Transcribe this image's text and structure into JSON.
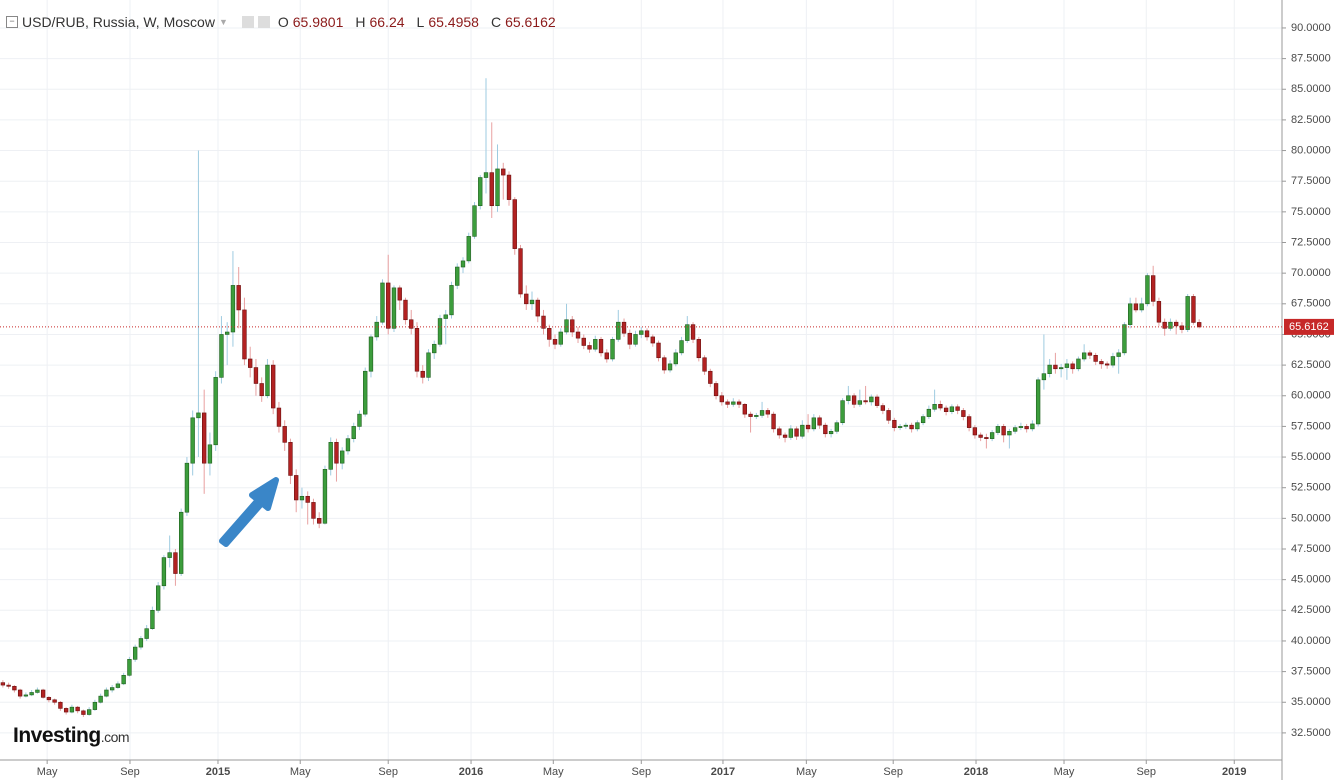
{
  "chart_data": {
    "type": "candlestick",
    "title": "USD/RUB, Russia, W, Moscow",
    "ohlc_labels": [
      "O",
      "H",
      "L",
      "C"
    ],
    "watermark": [
      "Investing",
      ".com"
    ],
    "up_color": "#3c9d3c",
    "down_color": "#b22222",
    "up_wick_color": "#9ecbe0",
    "down_wick_color": "#e8a0a0",
    "price_line_color": "#c62828",
    "grid": true,
    "ylim": [
      30.29,
      92.28
    ],
    "yticks": [
      {
        "value": 32.5,
        "label": "32.5000"
      },
      {
        "value": 35,
        "label": "35.0000"
      },
      {
        "value": 37.5,
        "label": "37.5000"
      },
      {
        "value": 40,
        "label": "40.0000"
      },
      {
        "value": 42.5,
        "label": "42.5000"
      },
      {
        "value": 45,
        "label": "45.0000"
      },
      {
        "value": 47.5,
        "label": "47.5000"
      },
      {
        "value": 50,
        "label": "50.0000"
      },
      {
        "value": 52.5,
        "label": "52.5000"
      },
      {
        "value": 55,
        "label": "55.0000"
      },
      {
        "value": 57.5,
        "label": "57.5000"
      },
      {
        "value": 60,
        "label": "60.0000"
      },
      {
        "value": 62.5,
        "label": "62.5000"
      },
      {
        "value": 65,
        "label": "65.0000"
      },
      {
        "value": 67.5,
        "label": "67.5000"
      },
      {
        "value": 70,
        "label": "70.0000"
      },
      {
        "value": 72.5,
        "label": "72.5000"
      },
      {
        "value": 75,
        "label": "75.0000"
      },
      {
        "value": 77.5,
        "label": "77.5000"
      },
      {
        "value": 80,
        "label": "80.0000"
      },
      {
        "value": 82.5,
        "label": "82.5000"
      },
      {
        "value": 85,
        "label": "85.0000"
      },
      {
        "value": 87.5,
        "label": "87.5000"
      },
      {
        "value": 90,
        "label": "90.0000"
      }
    ],
    "xlim": [
      -0.5,
      222.4
    ],
    "xticks": [
      {
        "value": 7.7,
        "label": "May"
      },
      {
        "value": 22.1,
        "label": "Sep"
      },
      {
        "value": 37.4,
        "label": "2015"
      },
      {
        "value": 51.7,
        "label": "May"
      },
      {
        "value": 67.0,
        "label": "Sep"
      },
      {
        "value": 81.4,
        "label": "2016"
      },
      {
        "value": 95.7,
        "label": "May"
      },
      {
        "value": 111.0,
        "label": "Sep"
      },
      {
        "value": 125.2,
        "label": "2017"
      },
      {
        "value": 139.7,
        "label": "May"
      },
      {
        "value": 154.8,
        "label": "Sep"
      },
      {
        "value": 169.2,
        "label": "2018"
      },
      {
        "value": 184.5,
        "label": "May"
      },
      {
        "value": 198.8,
        "label": "Sep"
      },
      {
        "value": 214.1,
        "label": "2019"
      }
    ],
    "candles": [
      [
        36.6,
        36.8,
        36.2,
        36.4
      ],
      [
        36.4,
        36.6,
        36.1,
        36.3
      ],
      [
        36.3,
        36.4,
        35.8,
        36.0
      ],
      [
        36.0,
        36.1,
        35.3,
        35.5
      ],
      [
        35.5,
        35.8,
        35.4,
        35.6
      ],
      [
        35.6,
        36.0,
        35.5,
        35.8
      ],
      [
        35.8,
        36.2,
        35.7,
        36.0
      ],
      [
        36.0,
        36.1,
        35.3,
        35.4
      ],
      [
        35.4,
        35.5,
        35.0,
        35.2
      ],
      [
        35.2,
        35.3,
        34.8,
        35.0
      ],
      [
        35.0,
        35.1,
        34.3,
        34.5
      ],
      [
        34.5,
        34.6,
        34.0,
        34.2
      ],
      [
        34.2,
        34.8,
        34.1,
        34.6
      ],
      [
        34.6,
        34.7,
        34.1,
        34.3
      ],
      [
        34.3,
        34.4,
        33.8,
        34.0
      ],
      [
        34.0,
        34.6,
        33.9,
        34.4
      ],
      [
        34.4,
        35.2,
        34.3,
        35.0
      ],
      [
        35.0,
        35.7,
        34.9,
        35.5
      ],
      [
        35.5,
        36.2,
        35.4,
        36.0
      ],
      [
        36.0,
        36.4,
        35.8,
        36.2
      ],
      [
        36.2,
        36.7,
        36.1,
        36.5
      ],
      [
        36.5,
        37.4,
        36.4,
        37.2
      ],
      [
        37.2,
        38.7,
        37.1,
        38.5
      ],
      [
        38.5,
        39.7,
        38.3,
        39.5
      ],
      [
        39.5,
        40.4,
        39.3,
        40.2
      ],
      [
        40.2,
        41.3,
        40.0,
        41.0
      ],
      [
        41.0,
        42.8,
        40.9,
        42.5
      ],
      [
        42.5,
        44.8,
        42.3,
        44.5
      ],
      [
        44.5,
        47.0,
        44.2,
        46.8
      ],
      [
        46.8,
        48.6,
        46.0,
        47.2
      ],
      [
        47.2,
        47.5,
        44.5,
        45.5
      ],
      [
        45.5,
        50.8,
        45.3,
        50.5
      ],
      [
        50.5,
        55.0,
        50.2,
        54.5
      ],
      [
        54.5,
        58.8,
        53.5,
        58.2
      ],
      [
        58.2,
        80.0,
        55.0,
        58.6
      ],
      [
        58.6,
        60.5,
        52.0,
        54.5
      ],
      [
        54.5,
        57.0,
        53.5,
        56.0
      ],
      [
        56.0,
        62.0,
        55.5,
        61.5
      ],
      [
        61.5,
        66.5,
        61.0,
        65.0
      ],
      [
        65.0,
        66.0,
        62.5,
        65.2
      ],
      [
        65.2,
        71.8,
        64.0,
        69.0
      ],
      [
        69.0,
        70.5,
        65.5,
        67.0
      ],
      [
        67.0,
        68.0,
        62.5,
        63.0
      ],
      [
        63.0,
        64.0,
        61.5,
        62.3
      ],
      [
        62.3,
        63.0,
        60.0,
        61.0
      ],
      [
        61.0,
        61.5,
        59.5,
        60.0
      ],
      [
        60.0,
        63.0,
        59.8,
        62.5
      ],
      [
        62.5,
        62.9,
        58.5,
        59.0
      ],
      [
        59.0,
        59.5,
        57.0,
        57.5
      ],
      [
        57.5,
        58.0,
        55.5,
        56.2
      ],
      [
        56.2,
        56.5,
        52.8,
        53.5
      ],
      [
        53.5,
        54.0,
        50.5,
        51.5
      ],
      [
        51.5,
        52.5,
        50.8,
        51.8
      ],
      [
        51.8,
        52.2,
        49.5,
        51.3
      ],
      [
        51.3,
        51.6,
        49.5,
        50.0
      ],
      [
        50.0,
        50.5,
        49.2,
        49.6
      ],
      [
        49.6,
        54.3,
        49.5,
        54.0
      ],
      [
        54.0,
        56.6,
        53.5,
        56.2
      ],
      [
        56.2,
        56.5,
        53.0,
        54.5
      ],
      [
        54.5,
        55.8,
        54.0,
        55.5
      ],
      [
        55.5,
        56.8,
        55.2,
        56.5
      ],
      [
        56.5,
        57.8,
        56.2,
        57.5
      ],
      [
        57.5,
        58.8,
        57.2,
        58.5
      ],
      [
        58.5,
        62.3,
        58.3,
        62.0
      ],
      [
        62.0,
        65.0,
        61.5,
        64.8
      ],
      [
        64.8,
        66.5,
        64.5,
        66.0
      ],
      [
        66.0,
        69.5,
        65.8,
        69.2
      ],
      [
        69.2,
        71.5,
        65.0,
        65.5
      ],
      [
        65.5,
        69.0,
        65.2,
        68.8
      ],
      [
        68.8,
        69.0,
        67.0,
        67.8
      ],
      [
        67.8,
        68.0,
        65.8,
        66.2
      ],
      [
        66.2,
        67.0,
        65.0,
        65.5
      ],
      [
        65.5,
        66.0,
        61.5,
        62.0
      ],
      [
        62.0,
        62.5,
        61.0,
        61.5
      ],
      [
        61.5,
        63.8,
        61.2,
        63.5
      ],
      [
        63.5,
        64.5,
        63.0,
        64.2
      ],
      [
        64.2,
        66.6,
        64.0,
        66.3
      ],
      [
        66.3,
        67.0,
        64.2,
        66.6
      ],
      [
        66.6,
        69.3,
        66.3,
        69.0
      ],
      [
        69.0,
        70.8,
        68.7,
        70.5
      ],
      [
        70.5,
        71.3,
        70.0,
        71.0
      ],
      [
        71.0,
        73.3,
        70.8,
        73.0
      ],
      [
        73.0,
        75.8,
        72.8,
        75.5
      ],
      [
        75.5,
        78.0,
        75.2,
        77.8
      ],
      [
        77.8,
        85.9,
        76.5,
        78.2
      ],
      [
        78.2,
        82.3,
        74.5,
        75.5
      ],
      [
        75.5,
        80.5,
        75.0,
        78.5
      ],
      [
        78.5,
        79.0,
        76.0,
        78.0
      ],
      [
        78.0,
        78.3,
        75.5,
        76.0
      ],
      [
        76.0,
        76.2,
        71.5,
        72.0
      ],
      [
        72.0,
        72.3,
        68.0,
        68.3
      ],
      [
        68.3,
        69.0,
        67.0,
        67.5
      ],
      [
        67.5,
        68.5,
        67.0,
        67.8
      ],
      [
        67.8,
        68.0,
        66.0,
        66.5
      ],
      [
        66.5,
        67.0,
        65.0,
        65.5
      ],
      [
        65.5,
        65.8,
        64.0,
        64.6
      ],
      [
        64.6,
        65.0,
        63.8,
        64.2
      ],
      [
        64.2,
        65.5,
        64.0,
        65.2
      ],
      [
        65.2,
        67.5,
        65.0,
        66.2
      ],
      [
        66.2,
        66.5,
        64.8,
        65.2
      ],
      [
        65.2,
        65.6,
        64.3,
        64.7
      ],
      [
        64.7,
        65.0,
        63.8,
        64.1
      ],
      [
        64.1,
        64.4,
        63.5,
        63.8
      ],
      [
        63.8,
        64.9,
        63.6,
        64.6
      ],
      [
        64.6,
        64.8,
        63.2,
        63.5
      ],
      [
        63.5,
        63.8,
        62.7,
        63.0
      ],
      [
        63.0,
        64.8,
        62.8,
        64.6
      ],
      [
        64.6,
        67.0,
        64.4,
        66.0
      ],
      [
        66.0,
        66.3,
        64.8,
        65.1
      ],
      [
        65.1,
        65.4,
        63.8,
        64.2
      ],
      [
        64.2,
        65.3,
        64.0,
        65.0
      ],
      [
        65.0,
        65.6,
        64.7,
        65.3
      ],
      [
        65.3,
        65.5,
        64.5,
        64.8
      ],
      [
        64.8,
        65.0,
        64.0,
        64.3
      ],
      [
        64.3,
        64.5,
        62.8,
        63.1
      ],
      [
        63.1,
        63.3,
        61.8,
        62.1
      ],
      [
        62.1,
        62.9,
        61.9,
        62.6
      ],
      [
        62.6,
        63.8,
        62.4,
        63.5
      ],
      [
        63.5,
        64.8,
        63.3,
        64.5
      ],
      [
        64.5,
        66.5,
        64.3,
        65.8
      ],
      [
        65.8,
        66.0,
        64.3,
        64.6
      ],
      [
        64.6,
        64.8,
        62.8,
        63.1
      ],
      [
        63.1,
        63.3,
        61.7,
        62.0
      ],
      [
        62.0,
        62.2,
        60.7,
        61.0
      ],
      [
        61.0,
        61.2,
        59.7,
        60.0
      ],
      [
        60.0,
        60.3,
        59.2,
        59.5
      ],
      [
        59.5,
        59.7,
        59.0,
        59.3
      ],
      [
        59.3,
        59.8,
        59.1,
        59.5
      ],
      [
        59.5,
        59.7,
        59.0,
        59.3
      ],
      [
        59.3,
        59.4,
        58.2,
        58.5
      ],
      [
        58.5,
        58.7,
        57.0,
        58.3
      ],
      [
        58.3,
        58.6,
        58.1,
        58.4
      ],
      [
        58.4,
        59.5,
        58.2,
        58.8
      ],
      [
        58.8,
        59.0,
        58.2,
        58.5
      ],
      [
        58.5,
        58.7,
        57.0,
        57.3
      ],
      [
        57.3,
        57.5,
        56.5,
        56.8
      ],
      [
        56.8,
        57.0,
        56.2,
        56.6
      ],
      [
        56.6,
        57.6,
        56.4,
        57.3
      ],
      [
        57.3,
        57.5,
        56.4,
        56.7
      ],
      [
        56.7,
        58.0,
        56.5,
        57.6
      ],
      [
        57.6,
        58.5,
        57.0,
        57.3
      ],
      [
        57.3,
        58.5,
        57.1,
        58.2
      ],
      [
        58.2,
        58.4,
        57.3,
        57.6
      ],
      [
        57.6,
        57.8,
        56.6,
        56.9
      ],
      [
        56.9,
        57.3,
        56.6,
        57.1
      ],
      [
        57.1,
        58.0,
        56.9,
        57.8
      ],
      [
        57.8,
        59.8,
        57.6,
        59.6
      ],
      [
        59.6,
        60.8,
        59.3,
        60.0
      ],
      [
        60.0,
        60.2,
        59.0,
        59.3
      ],
      [
        59.3,
        60.5,
        59.1,
        59.6
      ],
      [
        59.6,
        60.8,
        59.3,
        59.5
      ],
      [
        59.5,
        60.1,
        59.2,
        59.9
      ],
      [
        59.9,
        60.1,
        59.0,
        59.2
      ],
      [
        59.2,
        59.4,
        58.5,
        58.8
      ],
      [
        58.8,
        59.0,
        57.7,
        58.0
      ],
      [
        58.0,
        58.2,
        57.1,
        57.4
      ],
      [
        57.4,
        57.7,
        57.2,
        57.5
      ],
      [
        57.5,
        57.8,
        57.3,
        57.6
      ],
      [
        57.6,
        57.8,
        57.0,
        57.3
      ],
      [
        57.3,
        58.0,
        57.1,
        57.8
      ],
      [
        57.8,
        58.5,
        57.6,
        58.3
      ],
      [
        58.3,
        59.2,
        58.1,
        58.9
      ],
      [
        58.9,
        60.5,
        58.7,
        59.3
      ],
      [
        59.3,
        59.6,
        58.8,
        59.0
      ],
      [
        59.0,
        59.2,
        58.4,
        58.7
      ],
      [
        58.7,
        59.3,
        58.5,
        59.1
      ],
      [
        59.1,
        59.3,
        58.5,
        58.8
      ],
      [
        58.8,
        59.0,
        58.0,
        58.3
      ],
      [
        58.3,
        58.5,
        57.1,
        57.4
      ],
      [
        57.4,
        57.6,
        56.5,
        56.8
      ],
      [
        56.8,
        57.0,
        56.3,
        56.6
      ],
      [
        56.6,
        56.9,
        55.7,
        56.5
      ],
      [
        56.5,
        57.2,
        56.3,
        57.0
      ],
      [
        57.0,
        57.7,
        56.8,
        57.5
      ],
      [
        57.5,
        57.7,
        56.2,
        56.8
      ],
      [
        56.8,
        57.3,
        55.7,
        57.1
      ],
      [
        57.1,
        57.6,
        56.9,
        57.4
      ],
      [
        57.4,
        57.8,
        57.2,
        57.5
      ],
      [
        57.5,
        57.7,
        57.0,
        57.3
      ],
      [
        57.3,
        58.0,
        57.1,
        57.7
      ],
      [
        57.7,
        61.5,
        57.5,
        61.3
      ],
      [
        61.3,
        65.0,
        60.5,
        61.8
      ],
      [
        61.8,
        63.0,
        61.5,
        62.5
      ],
      [
        62.5,
        63.5,
        61.8,
        62.2
      ],
      [
        62.2,
        62.6,
        61.5,
        62.3
      ],
      [
        62.3,
        63.0,
        61.3,
        62.6
      ],
      [
        62.6,
        62.8,
        61.8,
        62.2
      ],
      [
        62.2,
        63.2,
        62.0,
        63.0
      ],
      [
        63.0,
        64.2,
        62.8,
        63.5
      ],
      [
        63.5,
        63.7,
        63.0,
        63.3
      ],
      [
        63.3,
        63.5,
        62.5,
        62.8
      ],
      [
        62.8,
        63.0,
        62.2,
        62.6
      ],
      [
        62.6,
        62.8,
        62.2,
        62.5
      ],
      [
        62.5,
        63.5,
        62.3,
        63.2
      ],
      [
        63.2,
        63.8,
        61.8,
        63.5
      ],
      [
        63.5,
        66.0,
        63.3,
        65.8
      ],
      [
        65.8,
        68.0,
        65.5,
        67.5
      ],
      [
        67.5,
        68.0,
        66.8,
        67.0
      ],
      [
        67.0,
        68.0,
        66.8,
        67.5
      ],
      [
        67.5,
        70.0,
        67.3,
        69.8
      ],
      [
        69.8,
        70.6,
        67.3,
        67.7
      ],
      [
        67.7,
        68.0,
        65.7,
        66.0
      ],
      [
        66.0,
        66.3,
        64.9,
        65.5
      ],
      [
        65.5,
        66.3,
        65.3,
        66.0
      ],
      [
        66.0,
        66.2,
        65.0,
        65.7
      ],
      [
        65.7,
        66.0,
        65.1,
        65.4
      ],
      [
        65.4,
        68.3,
        65.2,
        68.1
      ],
      [
        68.1,
        68.3,
        65.8,
        65.98
      ],
      [
        65.9801,
        66.24,
        65.4958,
        65.6162
      ]
    ]
  }
}
